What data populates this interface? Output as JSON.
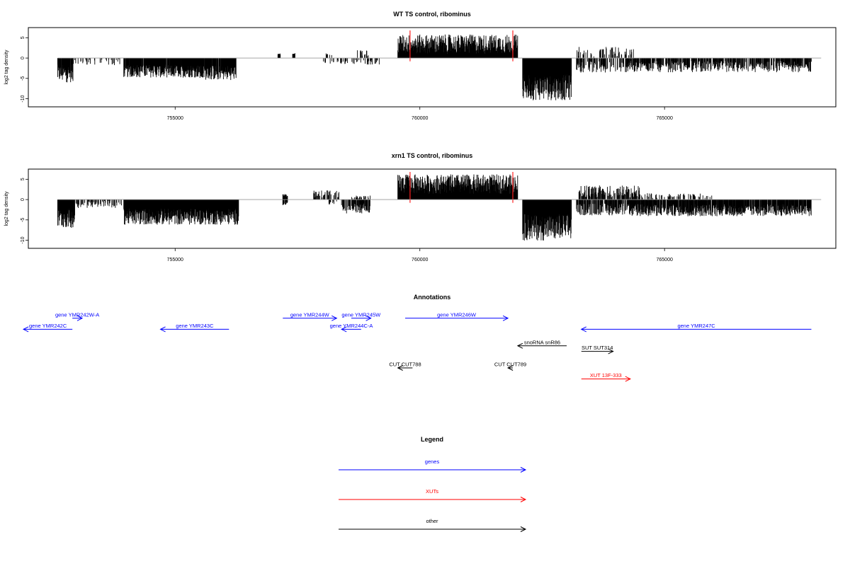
{
  "chart_data": [
    {
      "type": "bar",
      "title": "WT TS control, ribominus",
      "ylabel": "log2 tag density",
      "xlabel": "",
      "xlim": [
        752000,
        768500
      ],
      "ylim": [
        -12,
        7.5
      ],
      "x_ticks": [
        755000,
        760000,
        765000
      ],
      "y_ticks": [
        5,
        0,
        -5,
        -10
      ],
      "baseline": 0,
      "red_markers_x": [
        759800,
        761900
      ],
      "series": [
        {
          "values_desc": "minus strand",
          "segments": [
            {
              "start": 752600,
              "end": 752920,
              "mean": -3.8,
              "amp": 2.2,
              "density": 0.9
            },
            {
              "start": 752920,
              "end": 753950,
              "mean": -1.0,
              "amp": 0.8,
              "density": 0.25
            },
            {
              "start": 753950,
              "end": 755500,
              "mean": -3.2,
              "amp": 1.6,
              "density": 0.95
            },
            {
              "start": 755500,
              "end": 756250,
              "mean": -3.6,
              "amp": 1.8,
              "density": 0.95
            },
            {
              "start": 758000,
              "end": 758550,
              "mean": -0.9,
              "amp": 0.6,
              "density": 0.25
            },
            {
              "start": 758600,
              "end": 759200,
              "mean": -1.0,
              "amp": 0.6,
              "density": 0.2
            },
            {
              "start": 762100,
              "end": 763100,
              "mean": -7.2,
              "amp": 3.2,
              "density": 1.0
            },
            {
              "start": 763200,
              "end": 764200,
              "mean": -2.2,
              "amp": 1.4,
              "density": 0.5
            },
            {
              "start": 764200,
              "end": 768000,
              "mean": -2.1,
              "amp": 1.4,
              "density": 0.7
            }
          ]
        },
        {
          "values_desc": "plus strand",
          "segments": [
            {
              "start": 757100,
              "end": 757150,
              "mean": 1.0,
              "amp": 0.2,
              "density": 1.0
            },
            {
              "start": 757400,
              "end": 757450,
              "mean": 1.0,
              "amp": 0.2,
              "density": 1.0
            },
            {
              "start": 758000,
              "end": 758200,
              "mean": 1.2,
              "amp": 0.5,
              "density": 0.3
            },
            {
              "start": 758700,
              "end": 759100,
              "mean": 1.2,
              "amp": 0.8,
              "density": 0.15
            },
            {
              "start": 759550,
              "end": 762000,
              "mean": 3.4,
              "amp": 2.4,
              "density": 1.0
            },
            {
              "start": 763200,
              "end": 764400,
              "mean": 1.6,
              "amp": 1.2,
              "density": 0.25
            }
          ]
        }
      ]
    },
    {
      "type": "bar",
      "title": "xrn1 TS control, ribominus",
      "ylabel": "log2 tag density",
      "xlabel": "",
      "xlim": [
        752000,
        768500
      ],
      "ylim": [
        -12,
        7.5
      ],
      "x_ticks": [
        755000,
        760000,
        765000
      ],
      "y_ticks": [
        5,
        0,
        -5,
        -10
      ],
      "baseline": 0,
      "red_markers_x": [
        759800,
        761900
      ],
      "series": [
        {
          "values_desc": "minus strand",
          "segments": [
            {
              "start": 752600,
              "end": 752950,
              "mean": -4.6,
              "amp": 2.4,
              "density": 1.0
            },
            {
              "start": 752950,
              "end": 753950,
              "mean": -1.2,
              "amp": 0.9,
              "density": 0.3
            },
            {
              "start": 753950,
              "end": 756300,
              "mean": -4.2,
              "amp": 2.0,
              "density": 1.0
            },
            {
              "start": 757200,
              "end": 757300,
              "mean": -1.0,
              "amp": 0.5,
              "density": 0.5
            },
            {
              "start": 758100,
              "end": 758300,
              "mean": -0.8,
              "amp": 0.4,
              "density": 0.3
            },
            {
              "start": 758400,
              "end": 759000,
              "mean": -2.2,
              "amp": 1.2,
              "density": 0.55
            },
            {
              "start": 762100,
              "end": 763100,
              "mean": -6.8,
              "amp": 3.3,
              "density": 1.0
            },
            {
              "start": 763200,
              "end": 764300,
              "mean": -2.4,
              "amp": 1.5,
              "density": 0.7
            },
            {
              "start": 764300,
              "end": 768000,
              "mean": -2.6,
              "amp": 1.5,
              "density": 0.85
            }
          ]
        },
        {
          "values_desc": "plus strand",
          "segments": [
            {
              "start": 757200,
              "end": 757300,
              "mean": 1.0,
              "amp": 0.4,
              "density": 1.0
            },
            {
              "start": 757800,
              "end": 758350,
              "mean": 1.4,
              "amp": 0.9,
              "density": 0.5
            },
            {
              "start": 758600,
              "end": 759000,
              "mean": 0.6,
              "amp": 0.4,
              "density": 0.3
            },
            {
              "start": 759550,
              "end": 762000,
              "mean": 3.8,
              "amp": 2.4,
              "density": 1.0
            },
            {
              "start": 763250,
              "end": 764500,
              "mean": 2.0,
              "amp": 1.5,
              "density": 0.55
            },
            {
              "start": 764500,
              "end": 766000,
              "mean": 1.0,
              "amp": 0.6,
              "density": 0.2
            }
          ]
        }
      ]
    }
  ],
  "annotations": {
    "title": "Annotations",
    "xlim": [
      752000,
      768500
    ],
    "features": [
      {
        "label": "gene YMR242C",
        "start": 752900,
        "end": 751900,
        "color": "#0000ff",
        "track": 3
      },
      {
        "label": "gene YMR242W-A",
        "start": 752900,
        "end": 753100,
        "color": "#0000ff",
        "track": 1
      },
      {
        "label": "gene YMR243C",
        "start": 756100,
        "end": 754700,
        "color": "#0000ff",
        "track": 3
      },
      {
        "label": "gene YMR244W",
        "start": 757200,
        "end": 758300,
        "color": "#0000ff",
        "track": 1
      },
      {
        "label": "gene YMR244C-A",
        "start": 758800,
        "end": 758400,
        "color": "#0000ff",
        "track": 3
      },
      {
        "label": "gene YMR245W",
        "start": 758600,
        "end": 759000,
        "color": "#0000ff",
        "track": 1
      },
      {
        "label": "gene YMR246W",
        "start": 759700,
        "end": 761800,
        "color": "#0000ff",
        "track": 1
      },
      {
        "label": "gene YMR247C",
        "start": 768000,
        "end": 763300,
        "color": "#0000ff",
        "track": 3
      },
      {
        "label": "snoRNA snR86",
        "start": 763000,
        "end": 762000,
        "color": "#000000",
        "track": 6
      },
      {
        "label": "SUT SUT314",
        "start": 763300,
        "end": 763950,
        "color": "#000000",
        "track": 7
      },
      {
        "label": "CUT CUT788",
        "start": 759850,
        "end": 759550,
        "color": "#000000",
        "track": 10
      },
      {
        "label": "CUT CUT789",
        "start": 761900,
        "end": 761800,
        "color": "#000000",
        "track": 10
      },
      {
        "label": "XUT 13F-333",
        "start": 763300,
        "end": 764300,
        "color": "#ff0000",
        "track": 12
      }
    ]
  },
  "legend": {
    "title": "Legend",
    "items": [
      {
        "label": "genes",
        "color": "#0000ff"
      },
      {
        "label": "XUTs",
        "color": "#ff0000"
      },
      {
        "label": "other",
        "color": "#000000"
      }
    ]
  }
}
